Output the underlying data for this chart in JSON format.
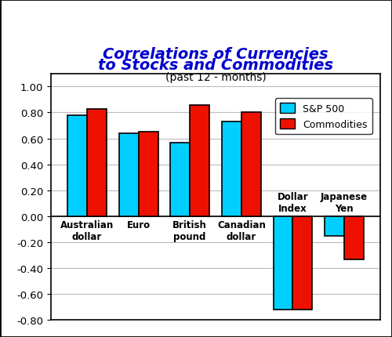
{
  "title_line1": "Correlations of Currencies",
  "title_line2": "to Stocks and Commodities",
  "subtitle": "(past 12 - months)",
  "categories": [
    "Australian\ndollar",
    "Euro",
    "British\npound",
    "Canadian\ndollar",
    "Dollar\nIndex",
    "Japanese\nYen"
  ],
  "sp500": [
    0.78,
    0.64,
    0.57,
    0.73,
    -0.72,
    -0.15
  ],
  "commodities": [
    0.83,
    0.65,
    0.86,
    0.8,
    -0.72,
    -0.33
  ],
  "sp500_color": "#00CFFF",
  "commodities_color": "#EE1100",
  "bar_edge_color": "#000000",
  "ylim": [
    -0.8,
    1.1
  ],
  "yticks": [
    -0.8,
    -0.6,
    -0.4,
    -0.2,
    0.0,
    0.2,
    0.4,
    0.6,
    0.8,
    1.0
  ],
  "legend_sp500": "S&P 500",
  "legend_commodities": "Commodities",
  "title_color": "#0000CC",
  "title_fontsize": 14,
  "subtitle_fontsize": 10,
  "background_color": "#FFFFFF",
  "grid_color": "#BBBBBB",
  "outer_border_color": "#000000"
}
